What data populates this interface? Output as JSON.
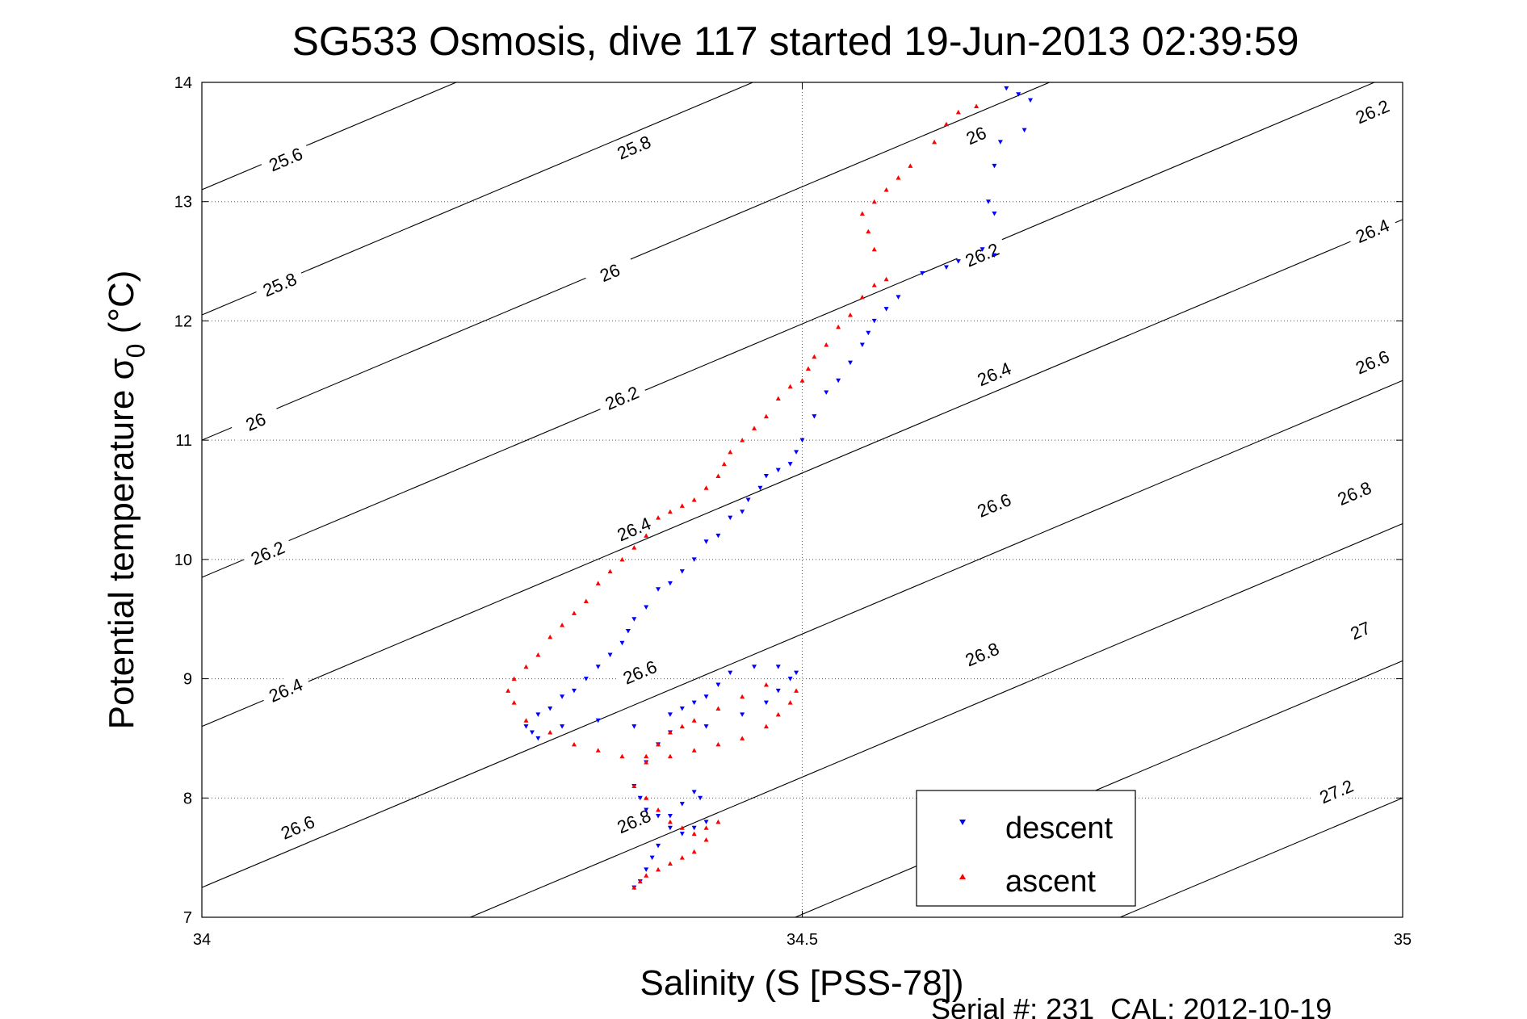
{
  "chart_data": {
    "type": "scatter",
    "title": "SG533 Osmosis, dive 117 started 19-Jun-2013 02:39:59",
    "xlabel": "Salinity (S [PSS-78])",
    "ylabel_main": "Potential temperature σ",
    "ylabel_sub": "0",
    "ylabel_unit": " (°C)",
    "xlim": [
      34,
      35
    ],
    "ylim": [
      7,
      14
    ],
    "xticks": [
      "34",
      "34.5",
      "35"
    ],
    "yticks": [
      "7",
      "8",
      "9",
      "10",
      "11",
      "12",
      "13",
      "14"
    ],
    "grid": true,
    "legend_position": "bottom-right",
    "footer": "Serial #: 231  CAL: 2012-10-19",
    "contour_labels": [
      {
        "text": "25.6",
        "x": 34.07,
        "y": 13.35
      },
      {
        "text": "25.8",
        "x": 34.36,
        "y": 13.45
      },
      {
        "text": "26",
        "x": 34.645,
        "y": 13.55
      },
      {
        "text": "26.2",
        "x": 34.975,
        "y": 13.75
      },
      {
        "text": "25.8",
        "x": 34.065,
        "y": 12.3
      },
      {
        "text": "26",
        "x": 34.34,
        "y": 12.4
      },
      {
        "text": "26.2",
        "x": 34.65,
        "y": 12.55
      },
      {
        "text": "26.4",
        "x": 34.975,
        "y": 12.75
      },
      {
        "text": "26",
        "x": 34.045,
        "y": 11.15
      },
      {
        "text": "26.2",
        "x": 34.35,
        "y": 11.35
      },
      {
        "text": "26.4",
        "x": 34.66,
        "y": 11.55
      },
      {
        "text": "26.6",
        "x": 34.975,
        "y": 11.65
      },
      {
        "text": "26.2",
        "x": 34.055,
        "y": 10.05
      },
      {
        "text": "26.4",
        "x": 34.36,
        "y": 10.25
      },
      {
        "text": "26.6",
        "x": 34.66,
        "y": 10.45
      },
      {
        "text": "26.8",
        "x": 34.96,
        "y": 10.55
      },
      {
        "text": "26.4",
        "x": 34.07,
        "y": 8.9
      },
      {
        "text": "26.6",
        "x": 34.365,
        "y": 9.05
      },
      {
        "text": "26.8",
        "x": 34.65,
        "y": 9.2
      },
      {
        "text": "27",
        "x": 34.965,
        "y": 9.4
      },
      {
        "text": "26.6",
        "x": 34.08,
        "y": 7.75
      },
      {
        "text": "26.8",
        "x": 34.36,
        "y": 7.8
      },
      {
        "text": "27.2",
        "x": 34.945,
        "y": 8.05
      }
    ],
    "series": [
      {
        "name": "descent",
        "color": "#0000ff",
        "marker": "triangle-down",
        "x": [
          34.67,
          34.68,
          34.69,
          34.685,
          34.665,
          34.66,
          34.655,
          34.66,
          34.65,
          34.66,
          34.63,
          34.62,
          34.6,
          34.58,
          34.57,
          34.56,
          34.555,
          34.55,
          34.54,
          34.53,
          34.52,
          34.51,
          34.5,
          34.495,
          34.49,
          34.48,
          34.47,
          34.465,
          34.455,
          34.45,
          34.44,
          34.43,
          34.42,
          34.41,
          34.4,
          34.39,
          34.38,
          34.37,
          34.36,
          34.355,
          34.35,
          34.34,
          34.33,
          34.32,
          34.31,
          34.3,
          34.29,
          34.28,
          34.27,
          34.275,
          34.28,
          34.3,
          34.33,
          34.36,
          34.39,
          34.42,
          34.45,
          34.47,
          34.48,
          34.49,
          34.495,
          34.48,
          34.46,
          34.44,
          34.43,
          34.42,
          34.41,
          34.4,
          34.39,
          34.38,
          34.37,
          34.36,
          34.365,
          34.37,
          34.38,
          34.39,
          34.4,
          34.41,
          34.42,
          34.415,
          34.41,
          34.4,
          34.39,
          34.38,
          34.375,
          34.37,
          34.365,
          34.36
        ],
        "y": [
          13.95,
          13.9,
          13.85,
          13.6,
          13.5,
          13.3,
          13.0,
          12.9,
          12.6,
          12.55,
          12.5,
          12.45,
          12.4,
          12.2,
          12.1,
          12.0,
          11.9,
          11.8,
          11.65,
          11.5,
          11.4,
          11.2,
          11.0,
          10.9,
          10.8,
          10.75,
          10.7,
          10.6,
          10.5,
          10.4,
          10.35,
          10.2,
          10.15,
          10.0,
          9.9,
          9.8,
          9.75,
          9.6,
          9.5,
          9.4,
          9.3,
          9.2,
          9.1,
          9.0,
          8.9,
          8.85,
          8.75,
          8.7,
          8.6,
          8.55,
          8.5,
          8.6,
          8.65,
          8.6,
          8.55,
          8.6,
          8.7,
          8.8,
          8.9,
          9.0,
          9.05,
          9.1,
          9.1,
          9.05,
          8.95,
          8.85,
          8.8,
          8.75,
          8.7,
          8.45,
          8.3,
          8.1,
          8.0,
          7.9,
          7.85,
          7.75,
          7.7,
          7.75,
          7.8,
          8.0,
          8.05,
          7.95,
          7.85,
          7.6,
          7.5,
          7.4,
          7.3,
          7.25
        ]
      },
      {
        "name": "ascent",
        "color": "#ff0000",
        "marker": "triangle-up",
        "x": [
          34.645,
          34.63,
          34.62,
          34.61,
          34.59,
          34.58,
          34.57,
          34.56,
          34.55,
          34.555,
          34.56,
          34.57,
          34.56,
          34.55,
          34.54,
          34.53,
          34.52,
          34.51,
          34.505,
          34.5,
          34.49,
          34.48,
          34.47,
          34.46,
          34.45,
          34.44,
          34.435,
          34.43,
          34.42,
          34.41,
          34.4,
          34.39,
          34.38,
          34.37,
          34.36,
          34.35,
          34.34,
          34.33,
          34.32,
          34.31,
          34.3,
          34.29,
          34.28,
          34.27,
          34.26,
          34.255,
          34.26,
          34.27,
          34.29,
          34.31,
          34.33,
          34.35,
          34.37,
          34.39,
          34.41,
          34.43,
          34.45,
          34.47,
          34.48,
          34.49,
          34.495,
          34.47,
          34.45,
          34.43,
          34.41,
          34.4,
          34.39,
          34.38,
          34.37,
          34.36,
          34.37,
          34.38,
          34.39,
          34.4,
          34.41,
          34.42,
          34.43,
          34.42,
          34.41,
          34.4,
          34.39,
          34.38,
          34.37,
          34.365,
          34.36
        ],
        "y": [
          13.8,
          13.75,
          13.65,
          13.5,
          13.3,
          13.2,
          13.1,
          13.0,
          12.9,
          12.75,
          12.6,
          12.35,
          12.3,
          12.2,
          12.05,
          11.95,
          11.8,
          11.7,
          11.6,
          11.5,
          11.45,
          11.35,
          11.2,
          11.1,
          11.0,
          10.9,
          10.8,
          10.7,
          10.6,
          10.5,
          10.45,
          10.4,
          10.35,
          10.2,
          10.1,
          10.0,
          9.9,
          9.8,
          9.65,
          9.55,
          9.45,
          9.35,
          9.2,
          9.1,
          9.0,
          8.9,
          8.8,
          8.65,
          8.55,
          8.45,
          8.4,
          8.35,
          8.3,
          8.35,
          8.4,
          8.45,
          8.5,
          8.6,
          8.7,
          8.8,
          8.9,
          8.95,
          8.85,
          8.75,
          8.65,
          8.6,
          8.55,
          8.45,
          8.35,
          8.1,
          8.0,
          7.9,
          7.8,
          7.75,
          7.7,
          7.75,
          7.8,
          7.65,
          7.55,
          7.5,
          7.45,
          7.4,
          7.35,
          7.3,
          7.25
        ]
      }
    ]
  }
}
